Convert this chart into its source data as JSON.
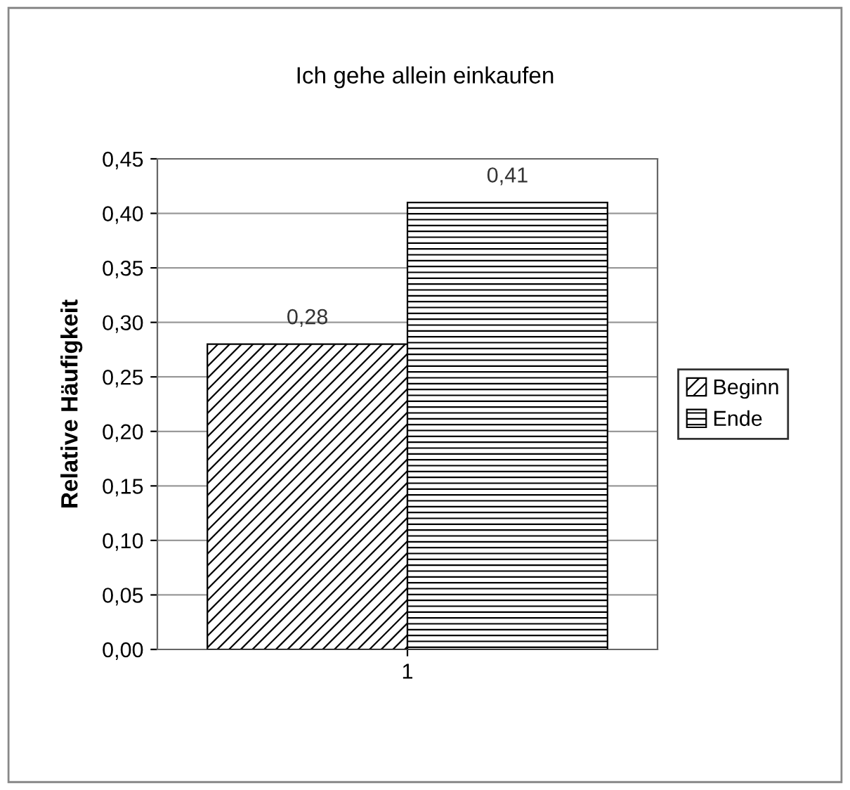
{
  "chart_data": {
    "type": "bar",
    "title": "Ich gehe allein einkaufen",
    "ylabel": "Relative Häufigkeit",
    "categories": [
      "1"
    ],
    "series": [
      {
        "name": "Beginn",
        "color": "#000000",
        "values": [
          0.28
        ],
        "value_labels": [
          "0,28"
        ]
      },
      {
        "name": "Ende",
        "color": "#000000",
        "values": [
          0.41
        ],
        "value_labels": [
          "0,41"
        ]
      }
    ],
    "ylim": [
      0,
      0.45
    ],
    "yticks": [
      {
        "value": 0,
        "label": "0,00"
      },
      {
        "value": 0.05,
        "label": "0,05"
      },
      {
        "value": 0.1,
        "label": "0,10"
      },
      {
        "value": 0.15,
        "label": "0,15"
      },
      {
        "value": 0.2,
        "label": "0,20"
      },
      {
        "value": 0.25,
        "label": "0,25"
      },
      {
        "value": 0.3,
        "label": "0,30"
      },
      {
        "value": 0.35,
        "label": "0,35"
      },
      {
        "value": 0.4,
        "label": "0,40"
      },
      {
        "value": 0.45,
        "label": "0,45"
      }
    ],
    "grid": "y",
    "legend": "right"
  }
}
